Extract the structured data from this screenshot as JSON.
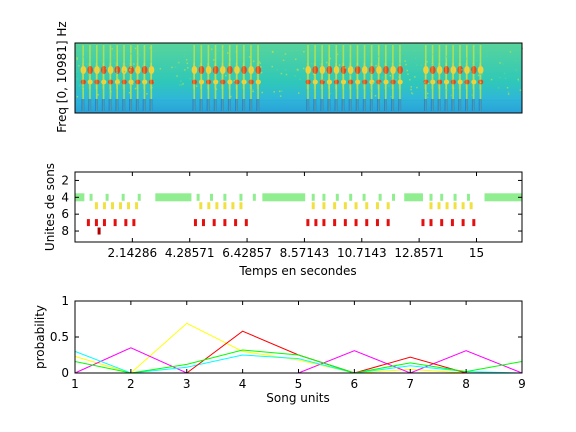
{
  "chart_data": [
    {
      "type": "heatmap",
      "ylabel": "Freq [0, 10981] Hz",
      "colormap": [
        "#1a6fd6",
        "#2fb7d8",
        "#58d49b",
        "#b9e34a",
        "#f0d23a",
        "#e04a1f"
      ],
      "song_blocks_s": [
        [
          0.2,
          3.0
        ],
        [
          4.35,
          7.0
        ],
        [
          8.6,
          12.3
        ],
        [
          13.0,
          15.3
        ]
      ],
      "x_range_s": [
        0,
        16.7
      ]
    },
    {
      "type": "scatter",
      "ylabel": "Unites de sons",
      "xlabel": "Temps en secondes",
      "x_tick_labels": [
        "2.14286",
        "4.28571",
        "6.42857",
        "8.57143",
        "10.7143",
        "12.8571",
        "15"
      ],
      "x_ticks": [
        2.14286,
        4.28571,
        6.42857,
        8.57143,
        10.7143,
        12.8571,
        15
      ],
      "y_tick_labels": [
        "2",
        "4",
        "6",
        "8"
      ],
      "y_ticks": [
        2,
        4,
        6,
        8
      ],
      "xlim": [
        0,
        16.7
      ],
      "ylim": [
        1,
        9.3
      ],
      "y_reversed": true,
      "rows": [
        {
          "unit": 4,
          "color": "#90ee90",
          "segments": [
            [
              0.0,
              0.35
            ],
            [
              3.0,
              4.35
            ],
            [
              7.0,
              8.6
            ],
            [
              12.3,
              13.0
            ],
            [
              15.3,
              16.7
            ]
          ]
        },
        {
          "unit": 4,
          "color": "#90ee90",
          "ticks": [
            0.6,
            1.2,
            1.8,
            2.4,
            4.6,
            5.1,
            5.6,
            6.2,
            6.7,
            8.9,
            9.3,
            9.8,
            10.3,
            10.8,
            11.4,
            11.9,
            13.3,
            13.7,
            14.2,
            14.7
          ]
        },
        {
          "unit": 5,
          "color": "#f0e040",
          "ticks": [
            0.8,
            1.1,
            1.4,
            1.7,
            2.0,
            2.3,
            4.7,
            5.0,
            5.3,
            5.6,
            5.9,
            6.2,
            8.9,
            9.3,
            9.7,
            10.1,
            10.5,
            10.9,
            11.3,
            11.7,
            13.3,
            13.6,
            13.9,
            14.2,
            14.5,
            14.8
          ]
        },
        {
          "unit": 7,
          "color": "#e31010",
          "ticks": [
            0.5,
            0.8,
            1.1,
            1.5,
            1.9,
            2.2,
            4.5,
            4.8,
            5.2,
            5.6,
            6.0,
            6.4,
            8.7,
            9.0,
            9.3,
            9.7,
            10.1,
            10.5,
            10.9,
            11.3,
            11.7,
            13.0,
            13.3,
            13.7,
            14.1,
            14.5,
            14.9
          ]
        },
        {
          "unit": 8,
          "color": "#b00000",
          "ticks": [
            0.9
          ]
        }
      ]
    },
    {
      "type": "line",
      "ylabel": "probability",
      "xlabel": "Song units",
      "x": [
        1,
        2,
        3,
        4,
        5,
        6,
        7,
        8,
        9
      ],
      "x_tick_labels": [
        "1",
        "2",
        "3",
        "4",
        "5",
        "6",
        "7",
        "8",
        "9"
      ],
      "y_tick_labels": [
        "0",
        "0.5",
        "1"
      ],
      "y_ticks": [
        0,
        0.5,
        1
      ],
      "xlim": [
        1,
        9
      ],
      "ylim": [
        0,
        1
      ],
      "series": [
        {
          "color": "#ffff00",
          "values": [
            0.23,
            0.0,
            0.69,
            0.3,
            0.18,
            0.0,
            0.05,
            0.0,
            0.0
          ]
        },
        {
          "color": "#ff00ff",
          "values": [
            0.0,
            0.35,
            0.0,
            0.0,
            0.0,
            0.31,
            0.0,
            0.31,
            0.0
          ]
        },
        {
          "color": "#00ffff",
          "values": [
            0.3,
            0.0,
            0.08,
            0.25,
            0.2,
            0.0,
            0.1,
            0.02,
            0.0
          ]
        },
        {
          "color": "#ff0000",
          "values": [
            0.0,
            0.0,
            0.0,
            0.58,
            0.25,
            0.0,
            0.22,
            0.0,
            0.0
          ]
        },
        {
          "color": "#00ff00",
          "values": [
            0.16,
            0.0,
            0.12,
            0.32,
            0.25,
            0.0,
            0.14,
            0.02,
            0.16
          ]
        },
        {
          "color": "#0000ff",
          "values": [
            0.0,
            0.0,
            0.0,
            0.0,
            0.0,
            0.0,
            0.0,
            0.0,
            0.0
          ]
        }
      ]
    }
  ]
}
